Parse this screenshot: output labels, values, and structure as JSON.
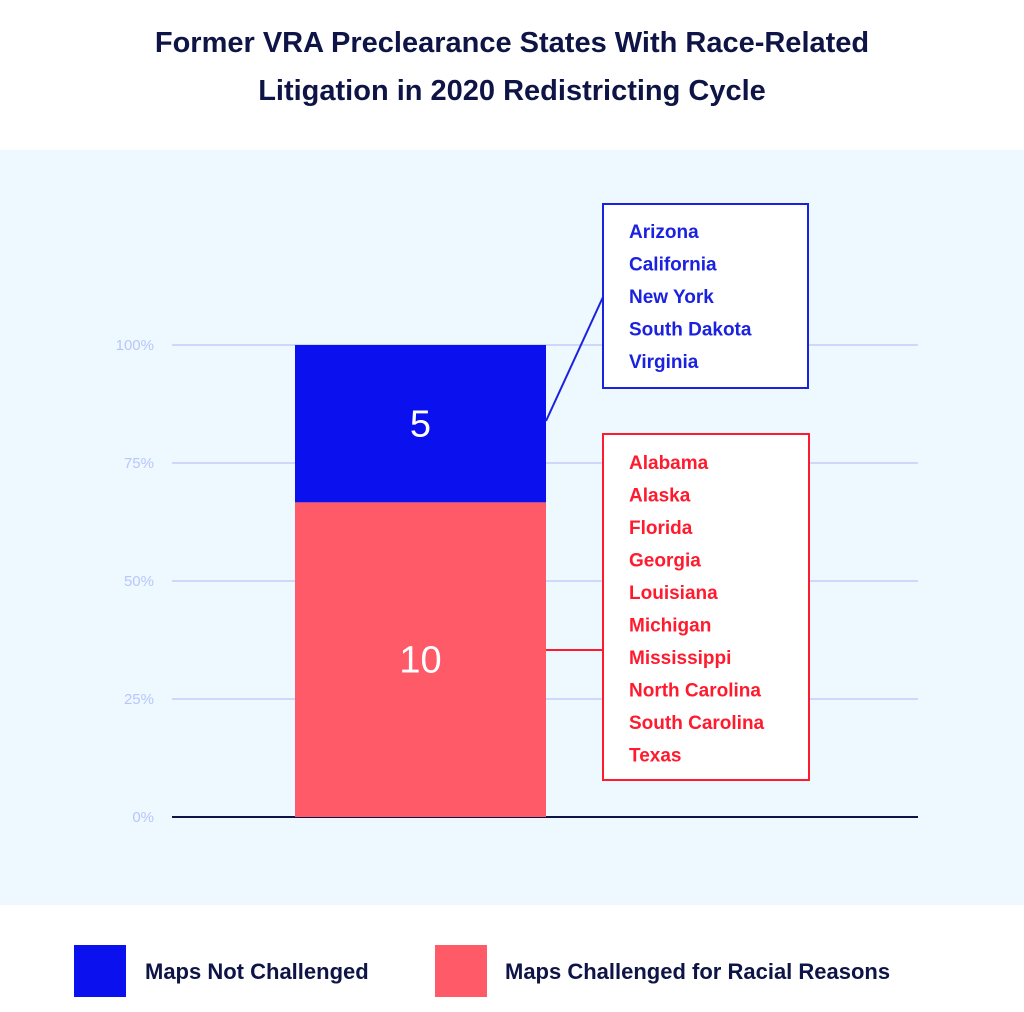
{
  "chart_data": {
    "type": "bar",
    "stacked": true,
    "percent_scale": true,
    "title": "Former VRA Preclearance States With Race-Related Litigation in 2020 Redistricting Cycle",
    "title_lines": [
      "Former VRA Preclearance States With Race-Related",
      "Litigation in 2020 Redistricting Cycle"
    ],
    "ylim": [
      0,
      100
    ],
    "yticks": [
      "0%",
      "25%",
      "50%",
      "75%",
      "100%"
    ],
    "grid": true,
    "legend_position": "bottom",
    "series": [
      {
        "name": "Maps Challenged for Racial Reasons",
        "value": 10,
        "color": "#ff5a67",
        "states": [
          "Alabama",
          "Alaska",
          "Florida",
          "Georgia",
          "Louisiana",
          "Michigan",
          "Mississippi",
          "North Carolina",
          "South Carolina",
          "Texas"
        ],
        "text_color": "#ff1a2e"
      },
      {
        "name": "Maps Not Challenged",
        "value": 5,
        "color": "#0a10ee",
        "states": [
          "Arizona",
          "California",
          "New York",
          "South Dakota",
          "Virginia"
        ],
        "text_color": "#1a22e0"
      }
    ]
  },
  "colors": {
    "panel": "#eef8ff",
    "grid": "#c2cdfb",
    "axis": "#0e1445"
  }
}
